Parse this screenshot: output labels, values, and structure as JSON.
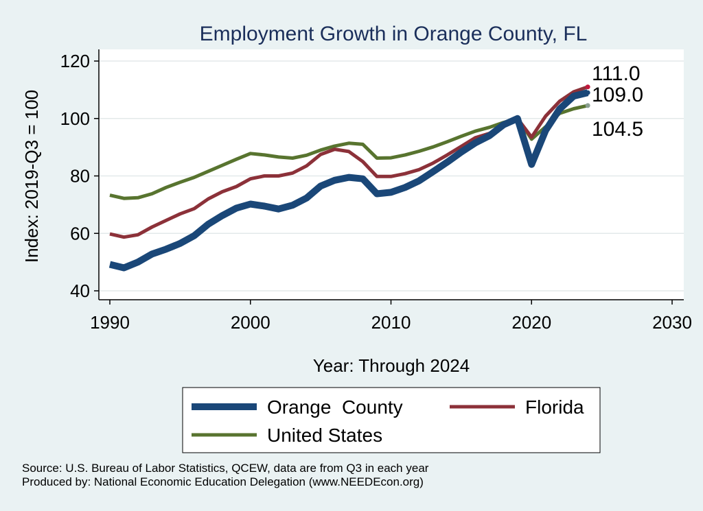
{
  "chart_data": {
    "type": "line",
    "title": "Employment Growth in Orange County, FL",
    "xlabel": "Year: Through 2024",
    "ylabel": "Index: 2019-Q3 = 100",
    "xlim": [
      1990,
      2030
    ],
    "ylim": [
      40,
      120
    ],
    "x_ticks": [
      "1990",
      "2000",
      "2010",
      "2020",
      "2030"
    ],
    "y_ticks": [
      "40",
      "60",
      "80",
      "100",
      "120"
    ],
    "grid": true,
    "legend_position": "bottom",
    "x": [
      1990,
      1991,
      1992,
      1993,
      1994,
      1995,
      1996,
      1997,
      1998,
      1999,
      2000,
      2001,
      2002,
      2003,
      2004,
      2005,
      2006,
      2007,
      2008,
      2009,
      2010,
      2011,
      2012,
      2013,
      2014,
      2015,
      2016,
      2017,
      2018,
      2019,
      2020,
      2021,
      2022,
      2023,
      2024
    ],
    "series": [
      {
        "name": "Orange  County",
        "color": "#1a4778",
        "width": 10,
        "end_label": "109.0",
        "end_marker_color": "#1a4778",
        "values": [
          49.2,
          48.0,
          50.0,
          52.8,
          54.5,
          56.5,
          59.2,
          63.2,
          66.2,
          68.8,
          70.2,
          69.5,
          68.5,
          69.8,
          72.3,
          76.5,
          78.5,
          79.5,
          79.0,
          73.8,
          74.3,
          76.0,
          78.3,
          81.5,
          84.8,
          88.3,
          91.5,
          94.0,
          97.8,
          100.0,
          84.0,
          95.8,
          103.3,
          107.8,
          109.0
        ]
      },
      {
        "name": "Florida",
        "color": "#8c3139",
        "width": 5,
        "end_label": "111.0",
        "end_marker_color": "#c2183c",
        "values": [
          59.8,
          58.7,
          59.5,
          62.2,
          64.5,
          66.8,
          68.6,
          72.0,
          74.5,
          76.3,
          79.0,
          80.0,
          80.0,
          81.0,
          83.5,
          87.5,
          89.3,
          88.5,
          85.0,
          79.8,
          79.8,
          80.8,
          82.2,
          84.5,
          87.3,
          90.3,
          93.3,
          94.8,
          97.2,
          100.0,
          93.5,
          100.8,
          106.0,
          109.3,
          111.0
        ]
      },
      {
        "name": "United States",
        "color": "#58742f",
        "width": 5,
        "end_label": "104.5",
        "end_marker_color": "#8a9f90",
        "values": [
          73.3,
          72.2,
          72.4,
          73.8,
          76.0,
          77.8,
          79.5,
          81.6,
          83.7,
          85.8,
          87.8,
          87.3,
          86.6,
          86.2,
          87.2,
          89.0,
          90.4,
          91.4,
          91.0,
          86.2,
          86.3,
          87.3,
          88.6,
          90.1,
          91.9,
          93.8,
          95.6,
          96.9,
          98.6,
          100.0,
          92.8,
          97.1,
          101.8,
          103.4,
          104.5
        ]
      }
    ]
  },
  "source": {
    "line1": "Source: U.S. Bureau of Labor Statistics, QCEW, data are from Q3 in each year",
    "line2": "Produced by: National Economic Education Delegation (www.NEEDEcon.org)"
  }
}
